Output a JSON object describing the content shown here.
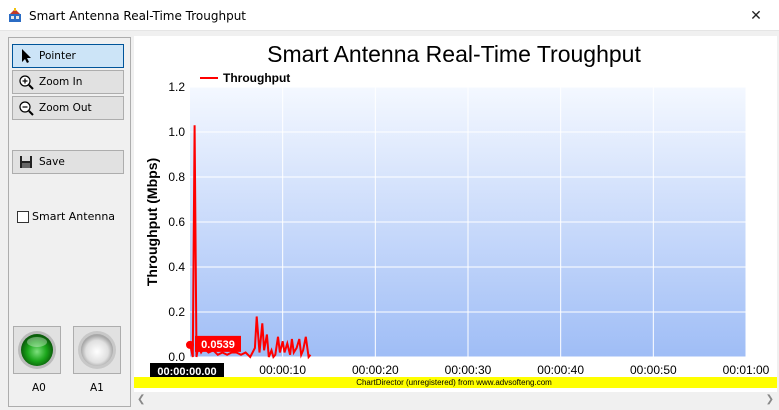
{
  "window": {
    "title": "Smart Antenna Real-Time Troughput",
    "close_glyph": "✕"
  },
  "toolbar": {
    "pointer_label": "Pointer",
    "zoom_in_label": "Zoom In",
    "zoom_out_label": "Zoom Out",
    "save_label": "Save",
    "smart_antenna_label": "Smart Antenna",
    "smart_antenna_checked": false,
    "a0_label": "A0",
    "a1_label": "A1",
    "a0_color": "#1aa51a",
    "a1_color": "#d9d9d9"
  },
  "chart_data": {
    "type": "line",
    "title": "Smart Antenna Real-Time Troughput",
    "ylabel": "Throughput (Mbps)",
    "xlabel": "",
    "legend": {
      "entries": [
        "Throughput"
      ],
      "placement": "top-left"
    },
    "ylim": [
      0,
      1.2
    ],
    "yticks": [
      "0.0",
      "0.2",
      "0.4",
      "0.6",
      "0.8",
      "1.0",
      "1.2"
    ],
    "xlim": [
      0,
      60
    ],
    "xticks": [
      "00:00:10",
      "00:00:20",
      "00:00:30",
      "00:00:40",
      "00:00:50",
      "00:01:00"
    ],
    "xtick_values": [
      10,
      20,
      30,
      40,
      50,
      60
    ],
    "cursor_time_label": "00:00:00.00",
    "current_value_label": "0.0539",
    "current_value": 0.0539,
    "series_color": "#ff0000",
    "footer": "ChartDirector (unregistered) from www.advsofteng.com",
    "series": [
      {
        "name": "Throughput",
        "x": [
          0,
          0.3,
          0.5,
          0.7,
          0.9,
          1.2,
          1.5,
          2,
          2.5,
          3,
          3.5,
          4,
          4.5,
          5,
          5.5,
          6,
          6.5,
          7,
          7.2,
          7.5,
          7.8,
          8,
          8.3,
          8.5,
          8.8,
          9,
          9.2,
          9.5,
          9.7,
          10,
          10.2,
          10.5,
          10.8,
          11,
          11.2,
          11.5,
          11.8,
          12,
          12.2,
          12.5,
          12.8,
          13
        ],
        "values": [
          0.06,
          0.0,
          1.03,
          0.0,
          0.05,
          0.02,
          0.04,
          0.02,
          0.03,
          0.01,
          0.02,
          0.01,
          0.02,
          0.02,
          0.01,
          0.02,
          0.0,
          0.04,
          0.18,
          0.02,
          0.15,
          0.03,
          0.1,
          0.0,
          0.03,
          0.0,
          0.01,
          0.09,
          0.02,
          0.07,
          0.02,
          0.06,
          0.01,
          0.08,
          0.02,
          0.04,
          0.08,
          0.01,
          0.03,
          0.09,
          0.0,
          0.01
        ]
      }
    ]
  }
}
